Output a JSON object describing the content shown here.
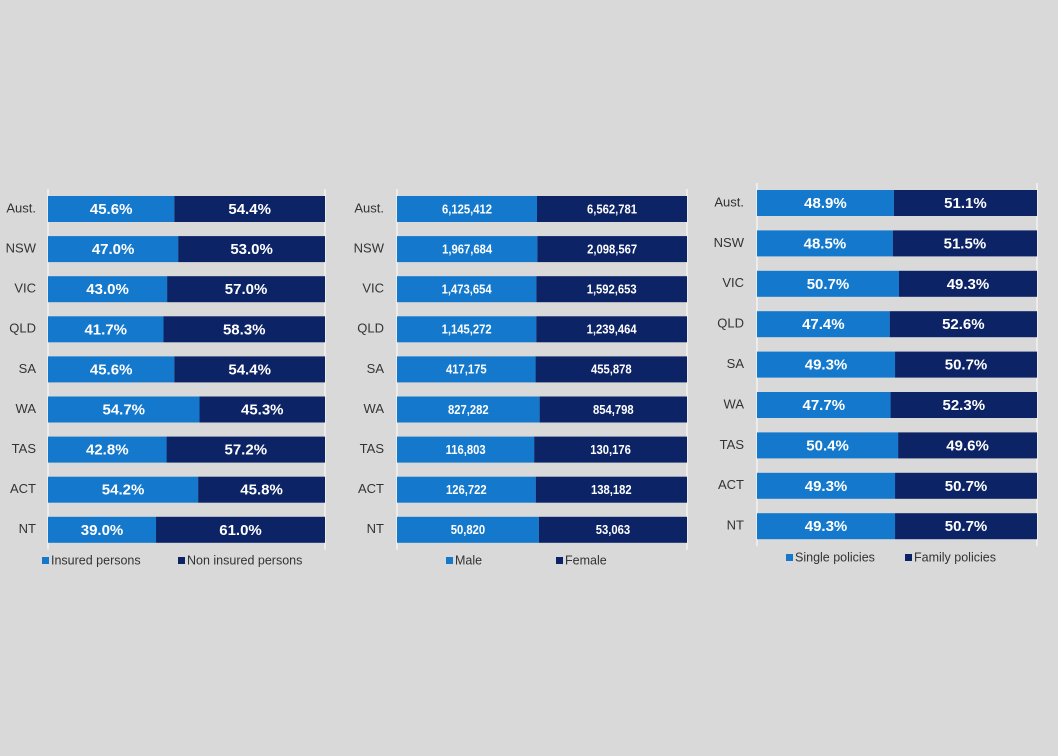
{
  "chart_data": [
    {
      "type": "bar",
      "orientation": "horizontal",
      "stacked": "percent",
      "categories": [
        "Aust.",
        "NSW",
        "VIC",
        "QLD",
        "SA",
        "WA",
        "TAS",
        "ACT",
        "NT"
      ],
      "series": [
        {
          "name": "Insured persons",
          "color": "#1479cc",
          "values": [
            45.6,
            47.0,
            43.0,
            41.7,
            45.6,
            54.7,
            42.8,
            54.2,
            39.0
          ],
          "value_labels": [
            "45.6%",
            "47.0%",
            "43.0%",
            "41.7%",
            "45.6%",
            "54.7%",
            "42.8%",
            "54.2%",
            "39.0%"
          ]
        },
        {
          "name": "Non insured persons",
          "color": "#0c2366",
          "values": [
            54.4,
            53.0,
            57.0,
            58.3,
            54.4,
            45.3,
            57.2,
            45.8,
            61.0
          ],
          "value_labels": [
            "54.4%",
            "53.0%",
            "57.0%",
            "58.3%",
            "54.4%",
            "45.3%",
            "57.2%",
            "45.8%",
            "61.0%"
          ]
        }
      ]
    },
    {
      "type": "bar",
      "orientation": "horizontal",
      "stacked": "percent",
      "categories": [
        "Aust.",
        "NSW",
        "VIC",
        "QLD",
        "SA",
        "WA",
        "TAS",
        "ACT",
        "NT"
      ],
      "series": [
        {
          "name": "Male",
          "color": "#1479cc",
          "values": [
            6125412,
            1967684,
            1473654,
            1145272,
            417175,
            827282,
            116803,
            126722,
            50820
          ],
          "value_labels": [
            "6,125,412",
            "1,967,684",
            "1,473,654",
            "1,145,272",
            "417,175",
            "827,282",
            "116,803",
            "126,722",
            "50,820"
          ]
        },
        {
          "name": "Female",
          "color": "#0c2366",
          "values": [
            6562781,
            2098567,
            1592653,
            1239464,
            455878,
            854798,
            130176,
            138182,
            53063
          ],
          "value_labels": [
            "6,562,781",
            "2,098,567",
            "1,592,653",
            "1,239,464",
            "455,878",
            "854,798",
            "130,176",
            "138,182",
            "53,063"
          ]
        }
      ]
    },
    {
      "type": "bar",
      "orientation": "horizontal",
      "stacked": "percent",
      "categories": [
        "Aust.",
        "NSW",
        "VIC",
        "QLD",
        "SA",
        "WA",
        "TAS",
        "ACT",
        "NT"
      ],
      "series": [
        {
          "name": "Single policies",
          "color": "#1479cc",
          "values": [
            48.9,
            48.5,
            50.7,
            47.4,
            49.3,
            47.7,
            50.4,
            49.3,
            49.3
          ],
          "value_labels": [
            "48.9%",
            "48.5%",
            "50.7%",
            "47.4%",
            "49.3%",
            "47.7%",
            "50.4%",
            "49.3%",
            "49.3%"
          ]
        },
        {
          "name": "Family policies",
          "color": "#0c2366",
          "values": [
            51.1,
            51.5,
            49.3,
            52.6,
            50.7,
            52.3,
            49.6,
            50.7,
            50.7
          ],
          "value_labels": [
            "51.1%",
            "51.5%",
            "49.3%",
            "52.6%",
            "50.7%",
            "52.3%",
            "49.6%",
            "50.7%",
            "50.7%"
          ]
        }
      ]
    }
  ]
}
